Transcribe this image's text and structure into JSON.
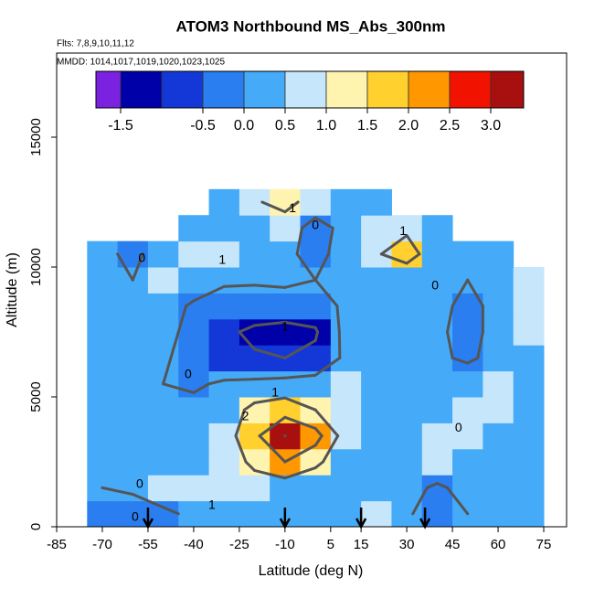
{
  "chart_data": {
    "type": "heatmap",
    "title": "ATOM3 Northbound MS_Abs_300nm",
    "subtitle": "Flts: 7,8,9,10,11,12",
    "annotation": "MMDD: 1014,1017,1019,1020,1023,1025",
    "x_label": "Latitude (deg N)",
    "y_label": "Altitude (m)",
    "xlim": [
      -85,
      82.5
    ],
    "ylim": [
      0,
      18240
    ],
    "xticks": [
      -85,
      -70,
      -55,
      -40,
      -25,
      -10,
      5,
      15,
      30,
      45,
      60,
      75
    ],
    "yticks": [
      0,
      5000,
      10000,
      15000
    ],
    "lat_edges": [
      -75,
      -65,
      -55,
      -45,
      -35,
      -25,
      -15,
      -5,
      5,
      15,
      25,
      35,
      45,
      55,
      65,
      75
    ],
    "alt_edges": [
      0,
      1000,
      2000,
      3000,
      4000,
      5000,
      6000,
      7000,
      8000,
      9000,
      10000,
      11000,
      12000,
      13000
    ],
    "z": [
      [
        -0.3,
        -0.3,
        -0.2,
        0.2,
        0.3,
        0.2,
        0.1,
        0.0,
        0.3,
        0.5,
        0.1,
        -0.4,
        0.0,
        0.1,
        0.2
      ],
      [
        0.0,
        0.1,
        0.6,
        0.9,
        0.8,
        0.6,
        0.4,
        0.0,
        0.2,
        0.3,
        0.2,
        -0.1,
        0.2,
        0.3,
        0.3
      ],
      [
        0.2,
        0.3,
        0.4,
        0.4,
        0.5,
        1.2,
        2.0,
        1.3,
        0.1,
        0.3,
        0.2,
        0.5,
        0.3,
        0.2,
        0.3
      ],
      [
        0.3,
        0.3,
        0.4,
        0.3,
        0.5,
        1.8,
        3.0,
        2.4,
        0.5,
        0.2,
        0.3,
        0.6,
        0.5,
        0.3,
        0.4
      ],
      [
        0.2,
        0.3,
        0.3,
        0.2,
        0.4,
        1.3,
        1.6,
        1.0,
        0.6,
        0.3,
        0.3,
        0.4,
        0.6,
        0.5,
        0.4
      ],
      [
        0.2,
        0.2,
        0.0,
        -0.1,
        0.1,
        0.2,
        0.3,
        0.4,
        0.5,
        0.4,
        0.3,
        0.3,
        0.4,
        0.5,
        0.4
      ],
      [
        0.1,
        0.2,
        0.1,
        -0.3,
        -0.6,
        -0.9,
        -1.0,
        -0.8,
        0.2,
        0.3,
        0.2,
        0.1,
        -0.1,
        0.2,
        0.4
      ],
      [
        0.1,
        0.1,
        0.2,
        -0.2,
        -0.8,
        -1.2,
        -1.3,
        -1.1,
        0.3,
        0.3,
        0.2,
        0.1,
        -0.2,
        0.2,
        0.5
      ],
      [
        0.1,
        0.0,
        0.3,
        -0.1,
        -0.3,
        -0.4,
        -0.5,
        -0.5,
        0.2,
        0.3,
        0.2,
        0.1,
        -0.1,
        0.1,
        0.6
      ],
      [
        0.0,
        0.0,
        0.5,
        0.4,
        0.1,
        0.1,
        0.2,
        0.0,
        0.1,
        0.0,
        0.1,
        0.0,
        0.0,
        0.1,
        0.5
      ],
      [
        0.1,
        -0.1,
        0.2,
        0.8,
        0.5,
        0.3,
        0.2,
        -0.3,
        0.4,
        0.9,
        1.5,
        0.3,
        0.3,
        0.2,
        null
      ],
      [
        null,
        null,
        null,
        0.0,
        0.1,
        0.3,
        0.5,
        -0.4,
        0.3,
        0.5,
        0.8,
        0.2,
        null,
        null,
        null
      ],
      [
        null,
        null,
        null,
        null,
        0.3,
        0.9,
        1.3,
        0.6,
        0.4,
        0.3,
        null,
        null,
        null,
        null,
        null
      ]
    ],
    "contour_levels": [
      -1,
      0,
      1,
      2,
      3
    ],
    "contour_labels": [
      {
        "level": 0,
        "lat": -57,
        "alt": 10317
      },
      {
        "level": 1,
        "lat": -30.6,
        "alt": 10250
      },
      {
        "level": 0,
        "lat": -41.8,
        "alt": 5845
      },
      {
        "level": 1,
        "lat": -13.2,
        "alt": 5140
      },
      {
        "level": 2,
        "lat": -23,
        "alt": 4225
      },
      {
        "level": 1,
        "lat": -10,
        "alt": 7676
      },
      {
        "level": 0,
        "lat": 0,
        "alt": 11585
      },
      {
        "level": 1,
        "lat": -7.5,
        "alt": 12250
      },
      {
        "level": 1,
        "lat": 28.8,
        "alt": 11370
      },
      {
        "level": 0,
        "lat": 39.3,
        "alt": 9260
      },
      {
        "level": 0,
        "lat": 47,
        "alt": 3800
      },
      {
        "level": 0,
        "lat": -57.7,
        "alt": 1620
      },
      {
        "level": 0,
        "lat": -59.2,
        "alt": 352
      },
      {
        "level": 1,
        "lat": -34,
        "alt": 810
      }
    ],
    "arrows_lat": [
      -55,
      -10,
      15,
      36
    ],
    "colorbar": {
      "breaks": [
        -1.8,
        -1.5,
        -1.0,
        -0.5,
        0,
        0.5,
        1,
        1.5,
        2,
        2.5,
        3,
        3.4
      ],
      "colors": [
        "#7a22e0",
        "#0000a8",
        "#1438d8",
        "#2a7ef0",
        "#45aaf8",
        "#c6e6fb",
        "#fff3b0",
        "#ffd02e",
        "#ff9800",
        "#f21200",
        "#a81010"
      ],
      "ticks": [
        -1.5,
        -0.5,
        {
          "value": 0,
          "label": "0.0"
        },
        0.5,
        {
          "value": 1,
          "label": "1.0"
        },
        1.5,
        {
          "value": 2,
          "label": "2.0"
        },
        2.5,
        {
          "value": 3,
          "label": "3.0"
        }
      ]
    }
  }
}
